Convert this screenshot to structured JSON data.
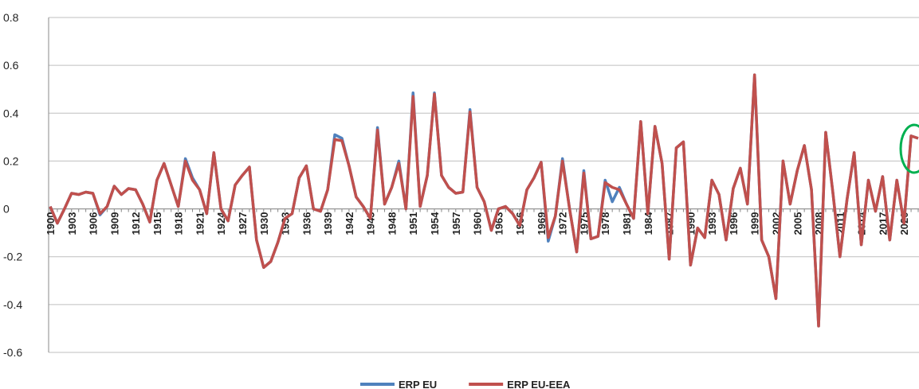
{
  "chart_data": {
    "type": "line",
    "categories": [
      "1900",
      null,
      null,
      "1903",
      null,
      null,
      "1906",
      null,
      null,
      "1909",
      null,
      null,
      "1912",
      null,
      null,
      "1915",
      null,
      null,
      "1918",
      null,
      null,
      "1921",
      null,
      null,
      "1924",
      null,
      null,
      "1927",
      null,
      null,
      "1930",
      null,
      null,
      "1933",
      null,
      null,
      "1936",
      null,
      null,
      "1939",
      null,
      null,
      "1942",
      null,
      null,
      "1945",
      null,
      null,
      "1948",
      null,
      null,
      "1951",
      null,
      null,
      "1954",
      null,
      null,
      "1957",
      null,
      null,
      "1960",
      null,
      null,
      "1963",
      null,
      null,
      "1966",
      null,
      null,
      "1969",
      null,
      null,
      "1972",
      null,
      null,
      "1975",
      null,
      null,
      "1978",
      null,
      null,
      "1981",
      null,
      null,
      "1984",
      null,
      null,
      "1987",
      null,
      null,
      "1990",
      null,
      null,
      "1993",
      null,
      null,
      "1996",
      null,
      null,
      "1999",
      null,
      null,
      "2002",
      null,
      null,
      "2005",
      null,
      null,
      "2008",
      null,
      null,
      "2011",
      null,
      null,
      "2014",
      null,
      null,
      "2017",
      null,
      null,
      "2020",
      null,
      null
    ],
    "series": [
      {
        "name": "ERP EU",
        "color": "#4f81bd",
        "values": [
          0.01,
          -0.06,
          0.0,
          0.065,
          0.06,
          0.07,
          0.065,
          -0.025,
          0.01,
          0.095,
          0.06,
          0.085,
          0.08,
          0.02,
          -0.055,
          0.12,
          0.19,
          0.1,
          0.01,
          0.21,
          0.13,
          0.08,
          -0.02,
          0.235,
          0.0,
          -0.05,
          0.1,
          0.14,
          0.175,
          -0.13,
          -0.245,
          -0.22,
          -0.14,
          -0.04,
          -0.02,
          0.13,
          0.18,
          0.0,
          -0.01,
          0.08,
          0.31,
          0.295,
          0.18,
          0.05,
          0.01,
          -0.04,
          0.34,
          0.02,
          0.09,
          0.2,
          0.0,
          0.485,
          0.01,
          0.14,
          0.485,
          0.14,
          0.09,
          0.065,
          0.07,
          0.415,
          0.09,
          0.03,
          -0.09,
          0.0,
          0.01,
          -0.02,
          -0.07,
          0.08,
          0.13,
          0.195,
          -0.135,
          -0.03,
          0.21,
          0.0,
          -0.18,
          0.16,
          -0.125,
          -0.115,
          0.12,
          0.03,
          0.09,
          0.02,
          -0.04,
          0.365,
          -0.02,
          0.345,
          0.19,
          -0.21,
          0.255,
          0.28,
          -0.235,
          -0.08,
          -0.12,
          0.12,
          0.06,
          -0.13,
          0.085,
          0.17,
          0.02,
          0.56,
          -0.13,
          -0.2,
          -0.375,
          0.2,
          0.02,
          0.16,
          0.265,
          0.08,
          -0.49,
          0.32,
          0.07,
          -0.2,
          0.04,
          0.235,
          -0.15,
          0.12,
          -0.01,
          0.135,
          -0.13,
          0.12,
          -0.06,
          0.305,
          0.295
        ]
      },
      {
        "name": "ERP EU-EEA",
        "color": "#c0504d",
        "values": [
          0.01,
          -0.06,
          0.0,
          0.065,
          0.06,
          0.07,
          0.065,
          -0.02,
          0.01,
          0.095,
          0.06,
          0.085,
          0.08,
          0.02,
          -0.055,
          0.12,
          0.19,
          0.1,
          0.01,
          0.2,
          0.12,
          0.08,
          -0.02,
          0.235,
          0.0,
          -0.05,
          0.1,
          0.14,
          0.175,
          -0.13,
          -0.245,
          -0.22,
          -0.14,
          -0.04,
          -0.02,
          0.13,
          0.18,
          0.0,
          -0.01,
          0.08,
          0.29,
          0.285,
          0.18,
          0.05,
          0.01,
          -0.04,
          0.33,
          0.02,
          0.09,
          0.19,
          0.0,
          0.47,
          0.01,
          0.14,
          0.48,
          0.14,
          0.09,
          0.065,
          0.07,
          0.405,
          0.09,
          0.03,
          -0.09,
          0.0,
          0.01,
          -0.02,
          -0.07,
          0.08,
          0.13,
          0.195,
          -0.12,
          -0.03,
          0.2,
          0.0,
          -0.18,
          0.15,
          -0.125,
          -0.115,
          0.11,
          0.09,
          0.08,
          0.02,
          -0.04,
          0.365,
          -0.02,
          0.345,
          0.19,
          -0.21,
          0.255,
          0.28,
          -0.235,
          -0.08,
          -0.12,
          0.12,
          0.06,
          -0.13,
          0.085,
          0.17,
          0.02,
          0.56,
          -0.13,
          -0.2,
          -0.375,
          0.2,
          0.02,
          0.16,
          0.265,
          0.08,
          -0.49,
          0.32,
          0.07,
          -0.2,
          0.04,
          0.235,
          -0.15,
          0.12,
          -0.01,
          0.135,
          -0.13,
          0.12,
          -0.06,
          0.305,
          0.295
        ]
      }
    ],
    "ylim": [
      -0.6,
      0.8
    ],
    "yticks": [
      -0.6,
      -0.4,
      -0.2,
      0,
      0.2,
      0.4,
      0.6,
      0.8
    ],
    "grid": true,
    "legend": "bottom"
  }
}
